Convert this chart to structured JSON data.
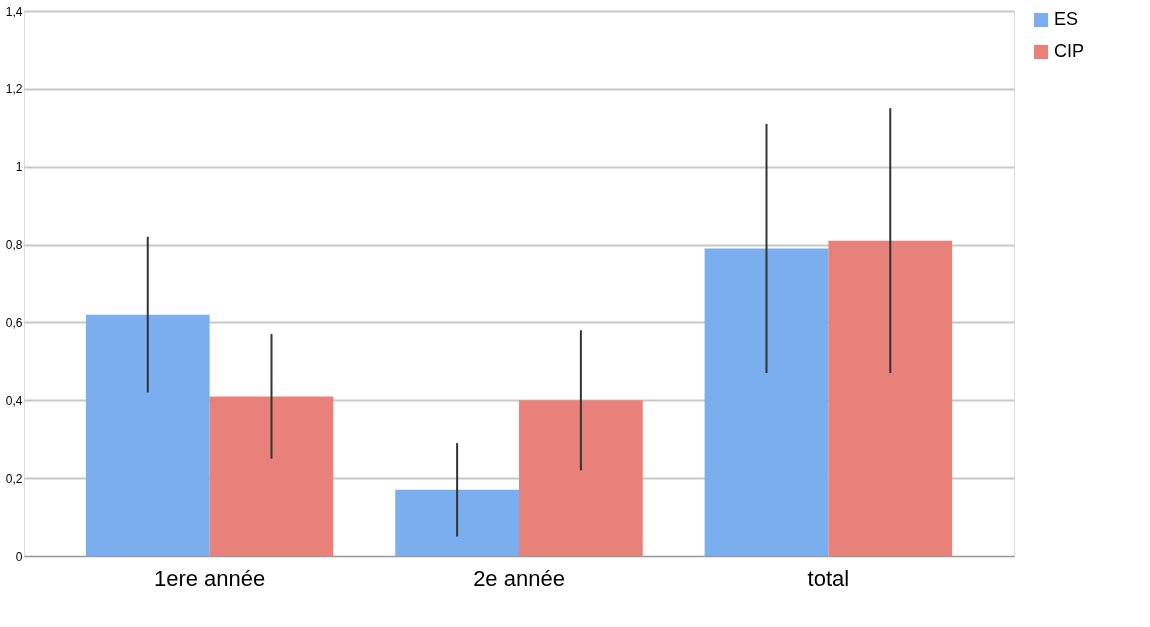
{
  "chart_data": {
    "type": "bar",
    "categories": [
      "1ere année",
      "2e année",
      "total"
    ],
    "series": [
      {
        "name": "ES",
        "color": "#7aaeee",
        "values": [
          0.62,
          0.17,
          0.79
        ],
        "errors": [
          [
            0.42,
            0.82
          ],
          [
            0.05,
            0.29
          ],
          [
            0.47,
            1.11
          ]
        ]
      },
      {
        "name": "CIP",
        "color": "#e8817a",
        "values": [
          0.41,
          0.4,
          0.81
        ],
        "errors": [
          [
            0.25,
            0.57
          ],
          [
            0.22,
            0.58
          ],
          [
            0.47,
            1.15
          ]
        ]
      }
    ],
    "ylim": [
      0,
      1.4
    ],
    "yticks": [
      {
        "value": 0,
        "label": "0"
      },
      {
        "value": 0.2,
        "label": "0,2"
      },
      {
        "value": 0.4,
        "label": "0,4"
      },
      {
        "value": 0.6,
        "label": "0,6"
      },
      {
        "value": 0.8,
        "label": "0,8"
      },
      {
        "value": 1,
        "label": "1"
      },
      {
        "value": 1.2,
        "label": "1,2"
      },
      {
        "value": 1.4,
        "label": "1,4"
      }
    ],
    "grid": "y",
    "legend": "right"
  }
}
